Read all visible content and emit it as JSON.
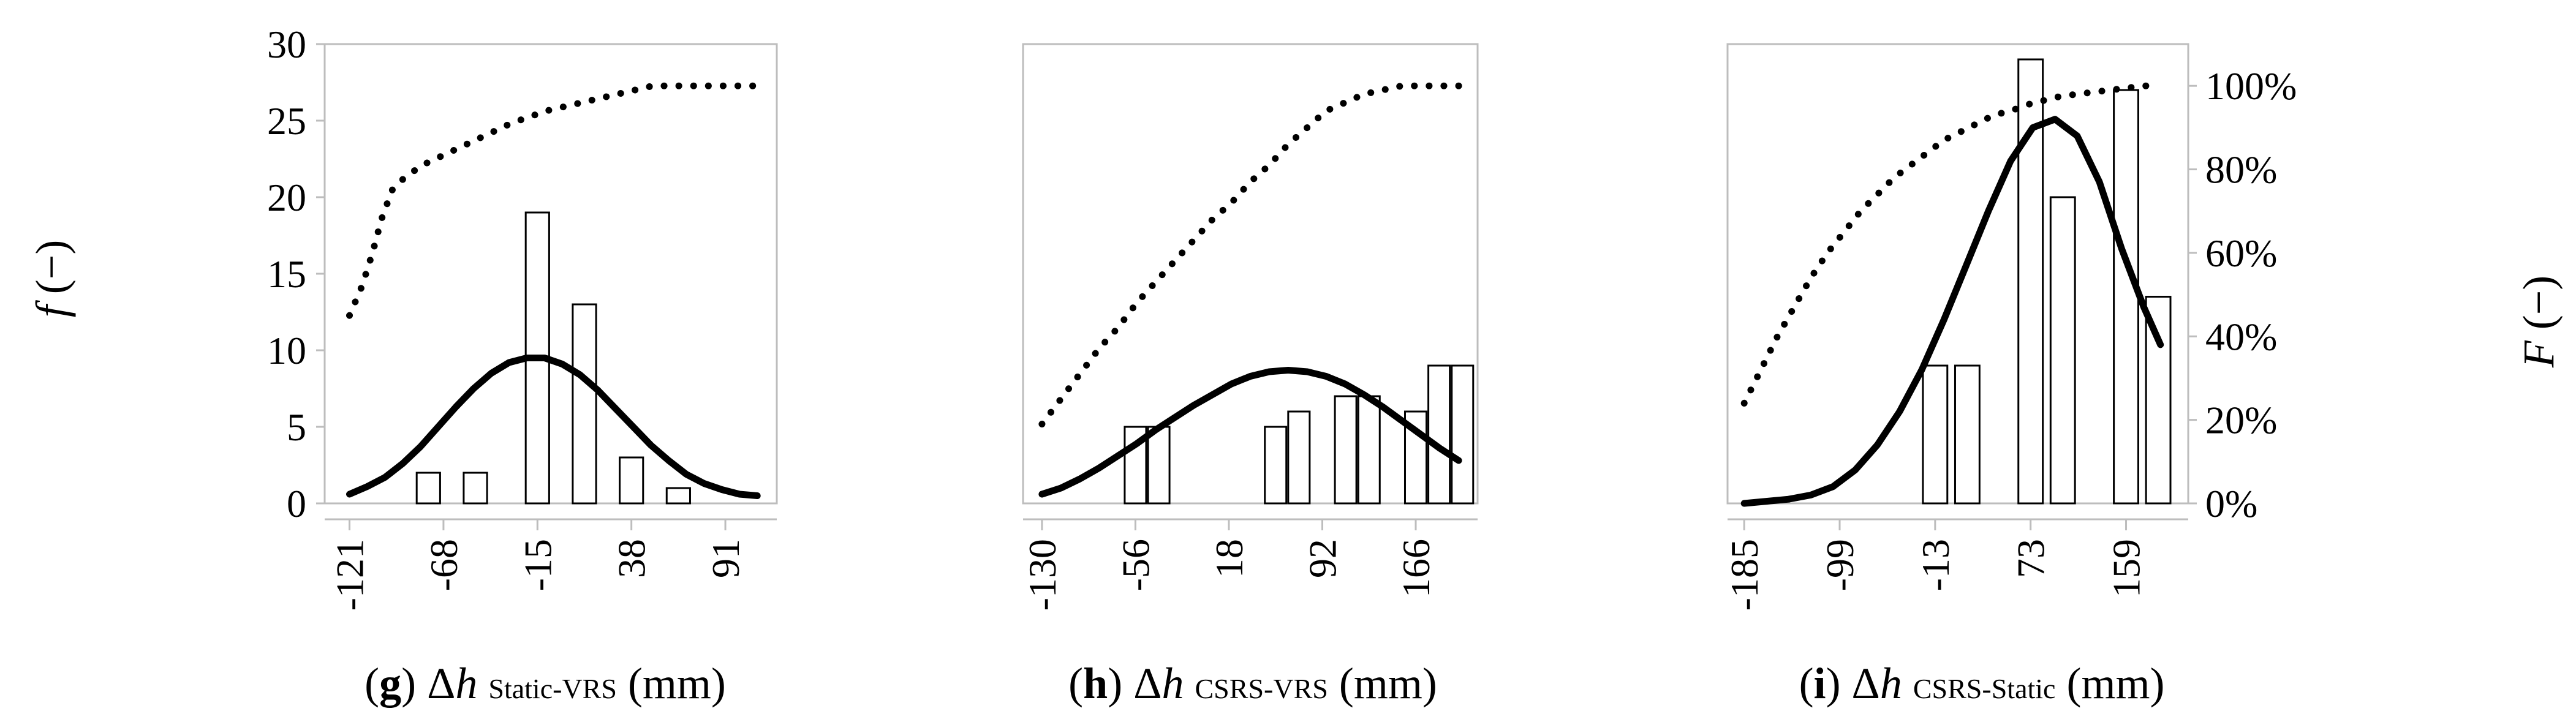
{
  "left_axis_label": {
    "italic": "f",
    "rest": " (−)"
  },
  "right_axis_label": {
    "italic": "F",
    "rest": " (−)"
  },
  "charts": [
    {
      "id": "g",
      "caption": {
        "letter": "g",
        "delta": "Δ",
        "var": "h",
        "subscript": "Static-VRS",
        "unit": "(mm)"
      },
      "chart_data": {
        "type": "bar",
        "title": "(g) Δh Static-VRS (mm)",
        "xlabel": "Δh Static-VRS (mm)",
        "ylabel": "f (−)",
        "y2label": "F (−)",
        "xlim": [
          -135,
          120
        ],
        "ylim": [
          0,
          30
        ],
        "y2lim": [
          0,
          110
        ],
        "xticks": [
          -121,
          -68,
          -15,
          38,
          91
        ],
        "yticks": [
          0,
          5,
          10,
          15,
          20,
          25,
          30
        ],
        "bars": {
          "centers": [
            -76.5,
            -50,
            -15,
            11.5,
            38,
            64.5
          ],
          "width": 13.2,
          "values": [
            2,
            2,
            19,
            13,
            3,
            1
          ]
        },
        "density_curve": {
          "x": [
            -121,
            -111,
            -101,
            -91,
            -81,
            -71,
            -61,
            -51,
            -41,
            -31,
            -21,
            -11,
            -1,
            9,
            19,
            29,
            39,
            49,
            59,
            69,
            79,
            89,
            99,
            109
          ],
          "y": [
            0.6,
            1.1,
            1.7,
            2.6,
            3.7,
            5.0,
            6.3,
            7.5,
            8.5,
            9.2,
            9.5,
            9.5,
            9.1,
            8.4,
            7.4,
            6.2,
            5.0,
            3.8,
            2.8,
            1.9,
            1.3,
            0.9,
            0.6,
            0.5
          ]
        },
        "cumulative": {
          "x": [
            -121,
            -114,
            -108,
            -103,
            -97,
            -90,
            -80,
            -70,
            -60,
            -50,
            -40,
            -30,
            -20,
            -10,
            0,
            10,
            20,
            30,
            40,
            50,
            60,
            70,
            80,
            90,
            100,
            110
          ],
          "y_percent": [
            45,
            52,
            60,
            68,
            75,
            78,
            81,
            83,
            85,
            87,
            89,
            91,
            92.5,
            94,
            95,
            96,
            97,
            98,
            99,
            100,
            100,
            100,
            100,
            100,
            100,
            100
          ]
        }
      }
    },
    {
      "id": "h",
      "caption": {
        "letter": "h",
        "delta": "Δ",
        "var": "h",
        "subscript": "CSRS-VRS",
        "unit": "(mm)"
      },
      "chart_data": {
        "type": "bar",
        "title": "(h) Δh CSRS-VRS (mm)",
        "xlabel": "Δh CSRS-VRS (mm)",
        "ylabel": "f (−)",
        "y2label": "F (−)",
        "xlim": [
          -145,
          215
        ],
        "ylim": [
          0,
          30
        ],
        "y2lim": [
          0,
          110
        ],
        "xticks": [
          -130,
          -56,
          18,
          92,
          166
        ],
        "yticks": [
          0,
          5,
          10,
          15,
          20,
          25,
          30
        ],
        "bars": {
          "centers": [
            -56,
            -37.5,
            55,
            73.5,
            110.5,
            129,
            166,
            184.5,
            203
          ],
          "width": 17,
          "values": [
            5,
            5,
            5,
            6,
            7,
            7,
            6,
            9,
            9
          ]
        },
        "density_curve": {
          "x": [
            -130,
            -115,
            -100,
            -85,
            -70,
            -55,
            -40,
            -25,
            -10,
            5,
            20,
            35,
            50,
            65,
            80,
            95,
            110,
            125,
            140,
            155,
            170,
            185,
            200
          ],
          "y": [
            0.6,
            1.0,
            1.6,
            2.3,
            3.1,
            3.9,
            4.8,
            5.6,
            6.4,
            7.1,
            7.8,
            8.3,
            8.6,
            8.7,
            8.6,
            8.3,
            7.8,
            7.1,
            6.3,
            5.4,
            4.5,
            3.6,
            2.8
          ]
        },
        "cumulative": {
          "x": [
            -130,
            -115,
            -100,
            -85,
            -70,
            -55,
            -40,
            -25,
            -10,
            5,
            20,
            35,
            50,
            65,
            80,
            95,
            110,
            125,
            140,
            155,
            170,
            185,
            200
          ],
          "y_percent": [
            19,
            25,
            31,
            37,
            42,
            48,
            53,
            58,
            63,
            68,
            72,
            77,
            81,
            86,
            90,
            94,
            96,
            98,
            99,
            100,
            100,
            100,
            100
          ]
        }
      }
    },
    {
      "id": "i",
      "caption": {
        "letter": "i",
        "delta": "Δ",
        "var": "h",
        "subscript": "CSRS-Static",
        "unit": "(mm)"
      },
      "chart_data": {
        "type": "bar",
        "title": "(i) Δh CSRS-Static (mm)",
        "xlabel": "Δh CSRS-Static (mm)",
        "ylabel": "f (−)",
        "y2label": "F (−)",
        "xlim": [
          -200,
          215
        ],
        "ylim": [
          0,
          30
        ],
        "y2lim": [
          0,
          110
        ],
        "xticks": [
          -185,
          -99,
          -13,
          73,
          159
        ],
        "yticks": [
          0,
          5,
          10,
          15,
          20,
          25,
          30
        ],
        "y2ticks": [
          "0%",
          "20%",
          "40%",
          "60%",
          "80%",
          "100%"
        ],
        "y2tick_values": [
          0,
          20,
          40,
          60,
          80,
          100
        ],
        "bars": {
          "centers": [
            -13,
            16,
            73,
            102,
            159,
            188
          ],
          "width": 22,
          "values": [
            9,
            9,
            29,
            20,
            27,
            13.5
          ]
        },
        "density_curve": {
          "x": [
            -185,
            -165,
            -145,
            -125,
            -105,
            -85,
            -65,
            -45,
            -25,
            -5,
            15,
            35,
            55,
            75,
            95,
            115,
            135,
            155,
            175,
            190
          ],
          "y_percent": [
            0,
            0.5,
            1,
            2,
            4,
            8,
            14,
            22,
            32,
            44,
            57,
            70,
            82,
            90,
            92,
            88,
            77,
            61,
            47,
            38
          ]
        },
        "cumulative": {
          "x": [
            -185,
            -170,
            -155,
            -140,
            -125,
            -110,
            -95,
            -80,
            -65,
            -50,
            -35,
            -20,
            -5,
            10,
            25,
            40,
            55,
            70,
            85,
            100,
            115,
            130,
            145,
            160,
            175,
            190
          ],
          "y_percent": [
            24,
            32,
            40,
            47,
            54,
            60,
            65,
            70,
            74,
            78,
            81,
            84,
            87,
            89,
            91,
            93,
            94,
            95.5,
            96.5,
            97.5,
            98,
            98.5,
            99,
            99.5,
            100,
            100
          ]
        }
      }
    }
  ]
}
